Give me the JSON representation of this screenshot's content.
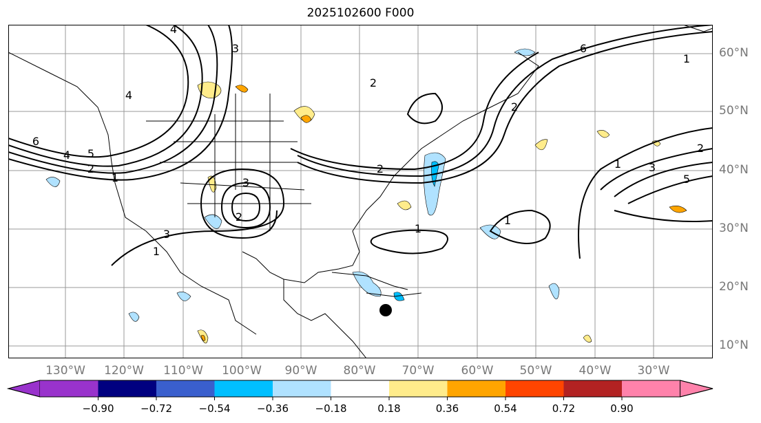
{
  "title": "2025102600 F000",
  "lat_labels": [
    "60°N",
    "50°N",
    "40°N",
    "30°N",
    "20°N",
    "10°N"
  ],
  "lon_labels": [
    "130°W",
    "120°W",
    "110°W",
    "100°W",
    "90°W",
    "80°W",
    "70°W",
    "60°W",
    "50°W",
    "40°W",
    "30°W"
  ],
  "colorbar": {
    "ticks": [
      "−0.90",
      "−0.72",
      "−0.54",
      "−0.36",
      "−0.18",
      "0.18",
      "0.36",
      "0.54",
      "0.72",
      "0.90"
    ],
    "colors": [
      "#9933cc",
      "#000080",
      "#3a5fcd",
      "#00bfff",
      "#b0e2ff",
      "#ffffff",
      "#ffec8b",
      "#ffa500",
      "#ff4500",
      "#b22222",
      "#ff82ab"
    ]
  },
  "contour_labels": [
    "4",
    "3",
    "4",
    "6",
    "4",
    "5",
    "2",
    "1",
    "3",
    "2",
    "3",
    "2",
    "1",
    "1",
    "1",
    "2",
    "1",
    "6",
    "1",
    "2",
    "3",
    "5",
    "2"
  ]
}
